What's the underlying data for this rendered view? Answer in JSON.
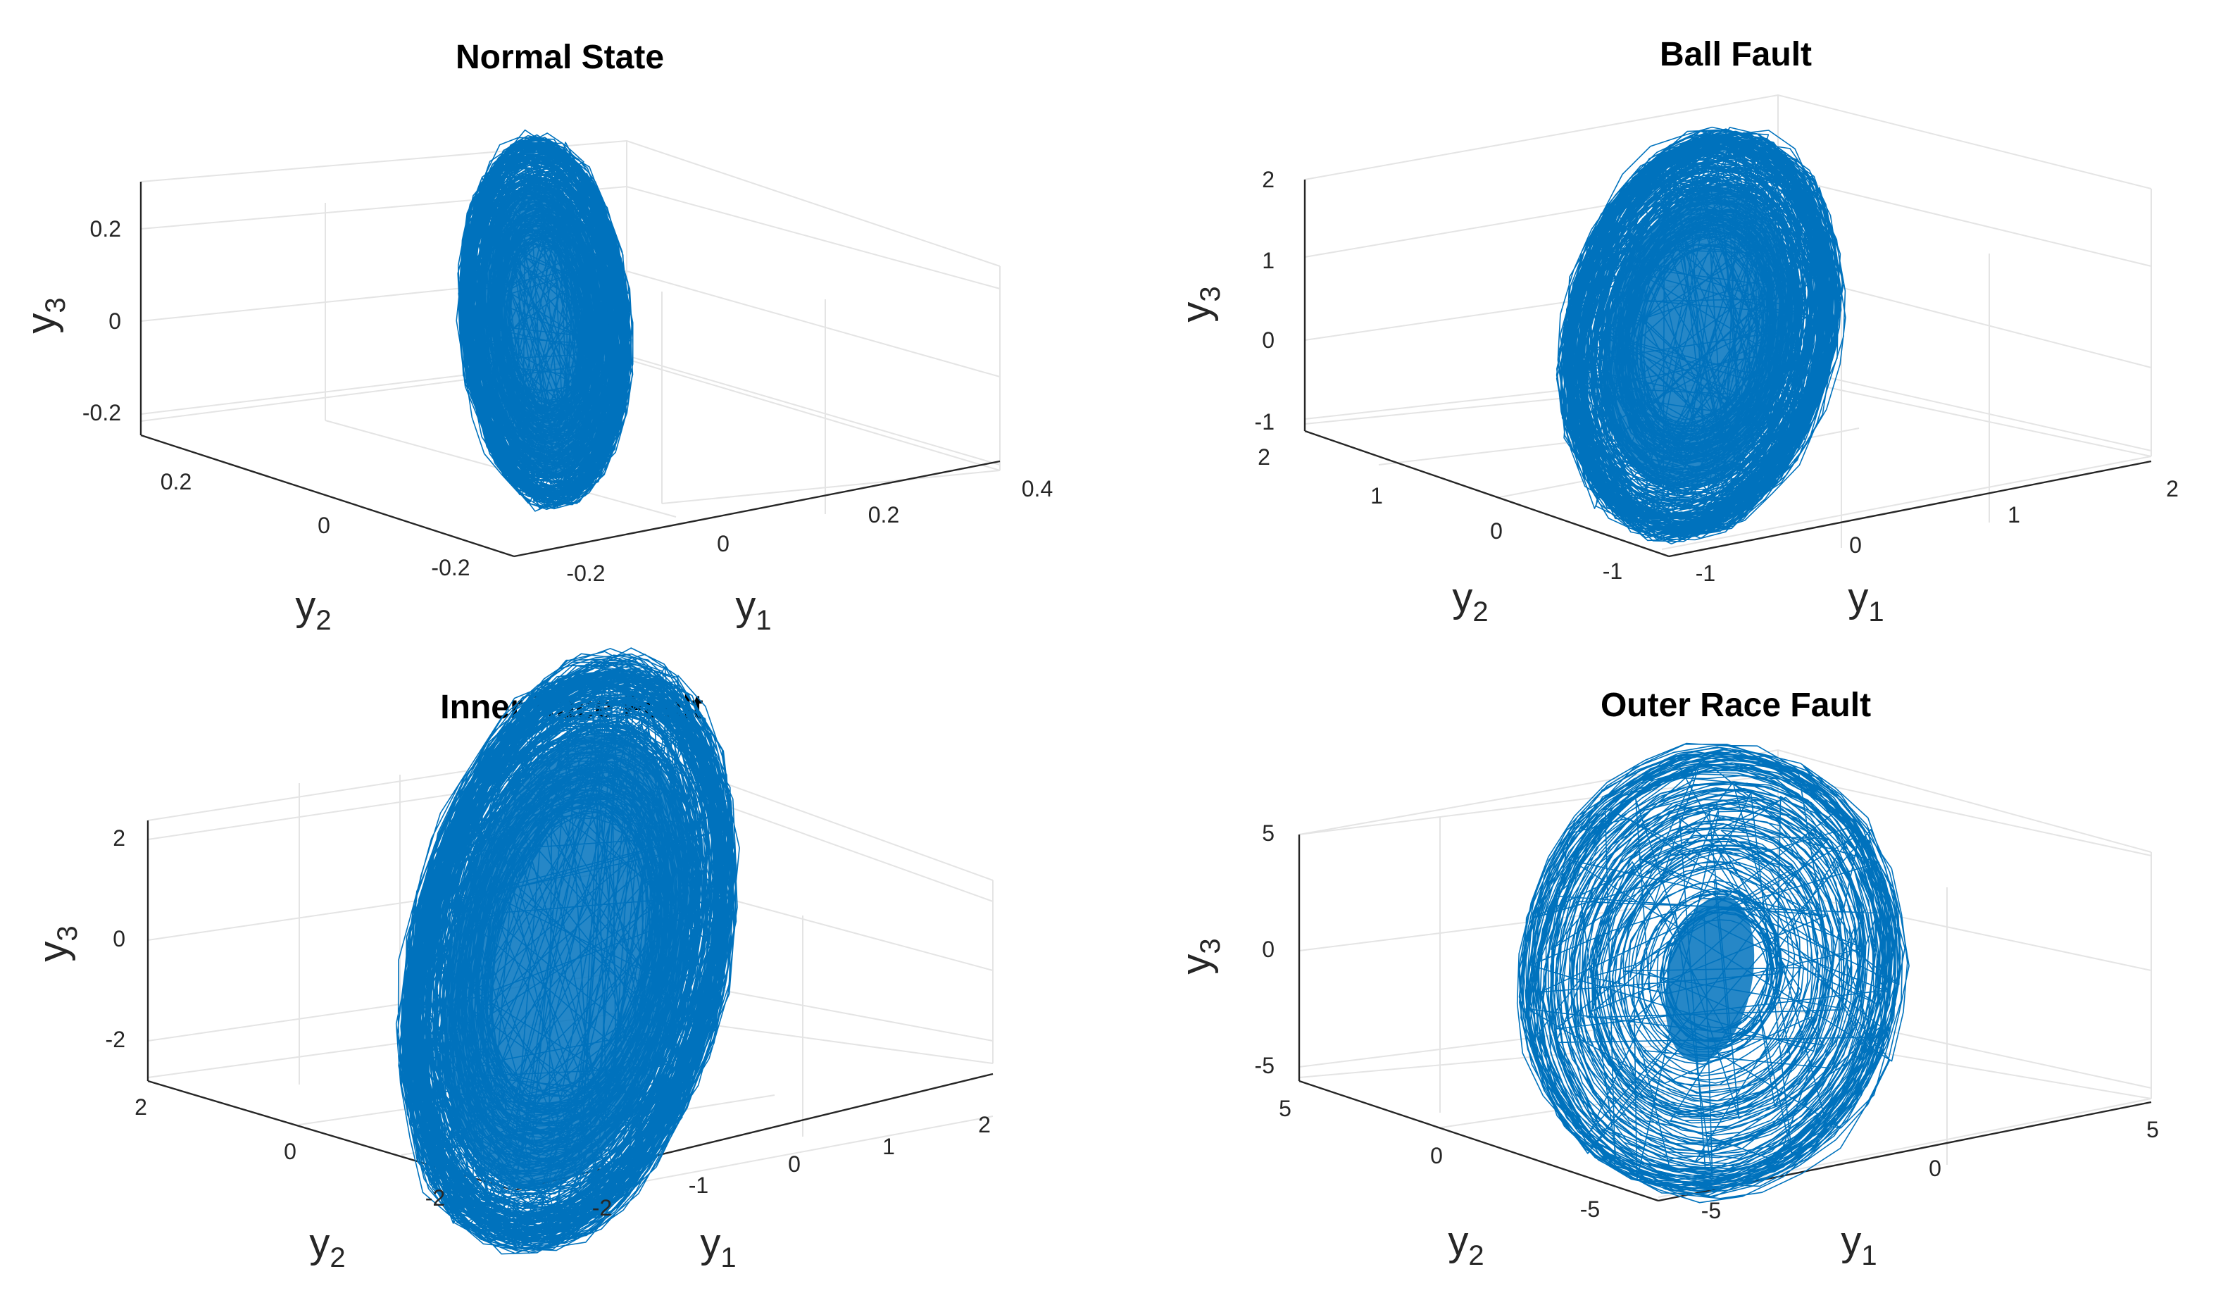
{
  "figure": {
    "layout": "2x2",
    "trace_color": "#0072bd"
  },
  "chart_data": [
    {
      "id": "normal",
      "type": "scatter",
      "mode": "3d-phase-trajectory",
      "title": "Normal State",
      "xlabel": "y",
      "xlabel_sub": "1",
      "ylabel": "y",
      "ylabel_sub": "2",
      "zlabel": "y",
      "zlabel_sub": "3",
      "y1_ticks": [
        -0.2,
        0,
        0.2,
        0.4
      ],
      "y1_tick_labels": [
        "-0.2",
        "0",
        "0.2",
        "0.4"
      ],
      "y2_ticks": [
        -0.2,
        0,
        0.2
      ],
      "y2_tick_labels": [
        "-0.2",
        "0",
        "0.2"
      ],
      "y3_ticks": [
        -0.2,
        0,
        0.2
      ],
      "y3_tick_labels": [
        "-0.2",
        "0",
        "0.2"
      ],
      "y1_range": [
        -0.28,
        0.42
      ],
      "y2_range": [
        -0.3,
        0.3
      ],
      "y3_range": [
        -0.27,
        0.3
      ],
      "trajectory": {
        "y1_center": -0.18,
        "y1_amplitude": 0.05,
        "y2_center": 0.0,
        "y2_amplitude": 0.05,
        "y3_center": -0.04,
        "y3_amplitude": 0.23,
        "y3_max": 0.3,
        "y3_min": -0.26
      }
    },
    {
      "id": "ball",
      "type": "scatter",
      "mode": "3d-phase-trajectory",
      "title": "Ball Fault",
      "xlabel": "y",
      "xlabel_sub": "1",
      "ylabel": "y",
      "ylabel_sub": "2",
      "zlabel": "y",
      "zlabel_sub": "3",
      "y1_ticks": [
        -1,
        0,
        1,
        2
      ],
      "y1_tick_labels": [
        "-1",
        "0",
        "1",
        "2"
      ],
      "y2_ticks": [
        -1,
        0,
        1,
        2
      ],
      "y2_tick_labels": [
        "-1",
        "0",
        "1",
        "2"
      ],
      "y3_ticks": [
        -1,
        0,
        1,
        2
      ],
      "y3_tick_labels": [
        "-1",
        "0",
        "1",
        "2"
      ],
      "y1_range": [
        -1.3,
        2.1
      ],
      "y2_range": [
        -1.1,
        2.1
      ],
      "y3_range": [
        -1.05,
        2.0
      ],
      "trajectory": {
        "y1_center": -0.85,
        "y1_amplitude": 0.4,
        "y2_center": -0.4,
        "y2_amplitude": 0.4,
        "y3_center": 0.25,
        "y3_amplitude": 1.05,
        "y3_max": 1.6,
        "y3_min": -1.0
      }
    },
    {
      "id": "inner",
      "type": "scatter",
      "mode": "3d-phase-trajectory",
      "title": "Inner Race Fault",
      "xlabel": "y",
      "xlabel_sub": "1",
      "ylabel": "y",
      "ylabel_sub": "2",
      "zlabel": "y",
      "zlabel_sub": "3",
      "y1_ticks": [
        -2,
        -1,
        0,
        1,
        2
      ],
      "y1_tick_labels": [
        "-2",
        "-1",
        "0",
        "1",
        "2"
      ],
      "y2_ticks": [
        -2,
        0,
        2
      ],
      "y2_tick_labels": [
        "-2",
        "0",
        "2"
      ],
      "y3_ticks": [
        -2,
        0,
        2
      ],
      "y3_tick_labels": [
        "-2",
        "0",
        "2"
      ],
      "y1_range": [
        -2.6,
        2.3
      ],
      "y2_range": [
        -2.6,
        2.6
      ],
      "y3_range": [
        -2.6,
        2.6
      ],
      "trajectory": {
        "y1_center": -1.55,
        "y1_amplitude": 0.7,
        "y2_center": 0.2,
        "y2_amplitude": 0.8,
        "y3_center": -0.3,
        "y3_amplitude": 2.5,
        "y3_max": 3.8,
        "y3_min": -2.8
      }
    },
    {
      "id": "outer",
      "type": "scatter",
      "mode": "3d-phase-trajectory",
      "title": "Outer Race Fault",
      "xlabel": "y",
      "xlabel_sub": "1",
      "ylabel": "y",
      "ylabel_sub": "2",
      "zlabel": "y",
      "zlabel_sub": "3",
      "y1_ticks": [
        -5,
        0,
        5
      ],
      "y1_tick_labels": [
        "-5",
        "0",
        "5"
      ],
      "y2_ticks": [
        -5,
        0,
        5
      ],
      "y2_tick_labels": [
        "-5",
        "0",
        "5"
      ],
      "y3_ticks": [
        -5,
        0,
        5
      ],
      "y3_tick_labels": [
        "-5",
        "0",
        "5"
      ],
      "y1_range": [
        -6.5,
        5.5
      ],
      "y2_range": [
        -5.5,
        6.5
      ],
      "y3_range": [
        -5.4,
        5.2
      ],
      "trajectory": {
        "y1_center": -4.5,
        "y1_amplitude": 1.8,
        "y2_center": -1.0,
        "y2_amplitude": 1.8,
        "y3_center": -0.1,
        "y3_amplitude": 5.2,
        "y3_max": 6.0,
        "y3_min": -5.6
      }
    }
  ]
}
